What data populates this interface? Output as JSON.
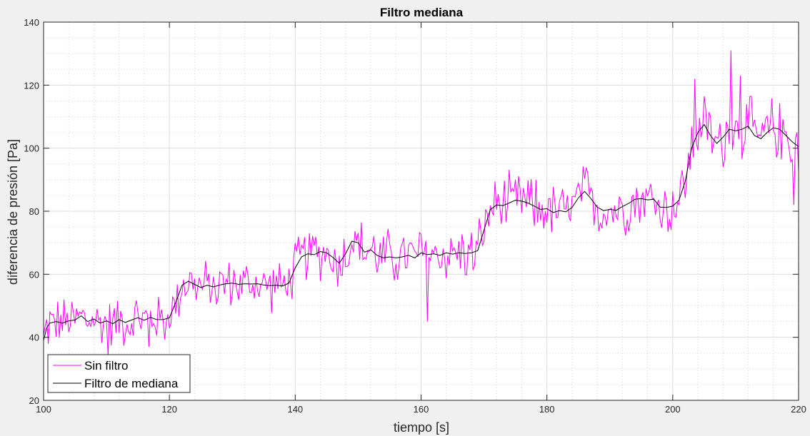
{
  "chart_data": {
    "type": "line",
    "title": "Filtro mediana",
    "xlabel": "tiempo [s]",
    "ylabel": "diferencia de presión [Pa]",
    "xlim": [
      100,
      220
    ],
    "ylim": [
      20,
      140
    ],
    "xticks": [
      100,
      120,
      140,
      160,
      180,
      200,
      220
    ],
    "yticks": [
      20,
      40,
      60,
      80,
      100,
      120,
      140
    ],
    "grid": "major and minor",
    "legend_position": "bottom-left",
    "series": [
      {
        "name": "Sin filtro",
        "color": "#ff00ff",
        "sample_step": 0.25,
        "noise_amplitude": 8,
        "spikes": [
          {
            "x": 209.3,
            "y": 131
          },
          {
            "x": 210.8,
            "y": 123
          },
          {
            "x": 203.6,
            "y": 122
          },
          {
            "x": 161.1,
            "y": 45
          },
          {
            "x": 110.2,
            "y": 34
          },
          {
            "x": 116.8,
            "y": 37
          },
          {
            "x": 219.2,
            "y": 82
          }
        ]
      },
      {
        "name": "Filtro de mediana",
        "color": "#000000",
        "points": [
          [
            100,
            39
          ],
          [
            100.5,
            43
          ],
          [
            101,
            44.5
          ],
          [
            102,
            45
          ],
          [
            103,
            44.5
          ],
          [
            104,
            45.2
          ],
          [
            105,
            45.5
          ],
          [
            106,
            46.8
          ],
          [
            107,
            45
          ],
          [
            108,
            45.8
          ],
          [
            109,
            44.5
          ],
          [
            110,
            45.2
          ],
          [
            111,
            44.3
          ],
          [
            112,
            45.6
          ],
          [
            113,
            44.7
          ],
          [
            114,
            45.5
          ],
          [
            115,
            46.2
          ],
          [
            116,
            45.4
          ],
          [
            117,
            46.3
          ],
          [
            118,
            45.6
          ],
          [
            119,
            45.6
          ],
          [
            120,
            46.2
          ],
          [
            121,
            51
          ],
          [
            122,
            56.5
          ],
          [
            123,
            57.8
          ],
          [
            124,
            56.8
          ],
          [
            125,
            55.8
          ],
          [
            126,
            56.5
          ],
          [
            127,
            56
          ],
          [
            128,
            56.6
          ],
          [
            129,
            57
          ],
          [
            130,
            57.2
          ],
          [
            131,
            56.8
          ],
          [
            132,
            57
          ],
          [
            133,
            56.9
          ],
          [
            134,
            57
          ],
          [
            135,
            56.6
          ],
          [
            136,
            56.4
          ],
          [
            137,
            56.5
          ],
          [
            138,
            56.3
          ],
          [
            139,
            57.2
          ],
          [
            140,
            62
          ],
          [
            141,
            65.5
          ],
          [
            142,
            66.5
          ],
          [
            143,
            66.2
          ],
          [
            144,
            67.2
          ],
          [
            145,
            66.8
          ],
          [
            146,
            65.3
          ],
          [
            147,
            63.5
          ],
          [
            148,
            66.5
          ],
          [
            149,
            70.5
          ],
          [
            150,
            70
          ],
          [
            151,
            67
          ],
          [
            152,
            67.8
          ],
          [
            153,
            66
          ],
          [
            154,
            65.2
          ],
          [
            155,
            65.5
          ],
          [
            156,
            65.2
          ],
          [
            157,
            65.5
          ],
          [
            158,
            66
          ],
          [
            159,
            65.2
          ],
          [
            160,
            66.8
          ],
          [
            161,
            66.2
          ],
          [
            162,
            66.5
          ],
          [
            163,
            66
          ],
          [
            164,
            66.8
          ],
          [
            165,
            66.4
          ],
          [
            166,
            66.8
          ],
          [
            167,
            66.6
          ],
          [
            168,
            66.8
          ],
          [
            169,
            67.5
          ],
          [
            170,
            74
          ],
          [
            171,
            80.5
          ],
          [
            172,
            82
          ],
          [
            173,
            81.8
          ],
          [
            174,
            82.6
          ],
          [
            175,
            83.5
          ],
          [
            176,
            83.2
          ],
          [
            177,
            82.6
          ],
          [
            178,
            81.6
          ],
          [
            179,
            80.6
          ],
          [
            180,
            80.8
          ],
          [
            181,
            79.6
          ],
          [
            182,
            80.2
          ],
          [
            183,
            79.8
          ],
          [
            184,
            81.2
          ],
          [
            185,
            84.2
          ],
          [
            186,
            86.3
          ],
          [
            187,
            84
          ],
          [
            188,
            81.3
          ],
          [
            189,
            80.2
          ],
          [
            190,
            80.6
          ],
          [
            191,
            80.3
          ],
          [
            192,
            81.5
          ],
          [
            193,
            82.5
          ],
          [
            194,
            83.8
          ],
          [
            195,
            84
          ],
          [
            196,
            83.6
          ],
          [
            197,
            83.8
          ],
          [
            198,
            81.3
          ],
          [
            199,
            81.2
          ],
          [
            200,
            81.6
          ],
          [
            201,
            83.5
          ],
          [
            202,
            89.5
          ],
          [
            203,
            100
          ],
          [
            204,
            105
          ],
          [
            205,
            107.5
          ],
          [
            206,
            104
          ],
          [
            207,
            101.5
          ],
          [
            208,
            103.5
          ],
          [
            209,
            106
          ],
          [
            210,
            105.5
          ],
          [
            211,
            106
          ],
          [
            212,
            107
          ],
          [
            213,
            104
          ],
          [
            214,
            103
          ],
          [
            215,
            105
          ],
          [
            216,
            106.5
          ],
          [
            217,
            106
          ],
          [
            218,
            104
          ],
          [
            219,
            102
          ],
          [
            220,
            100.5
          ]
        ]
      }
    ]
  }
}
